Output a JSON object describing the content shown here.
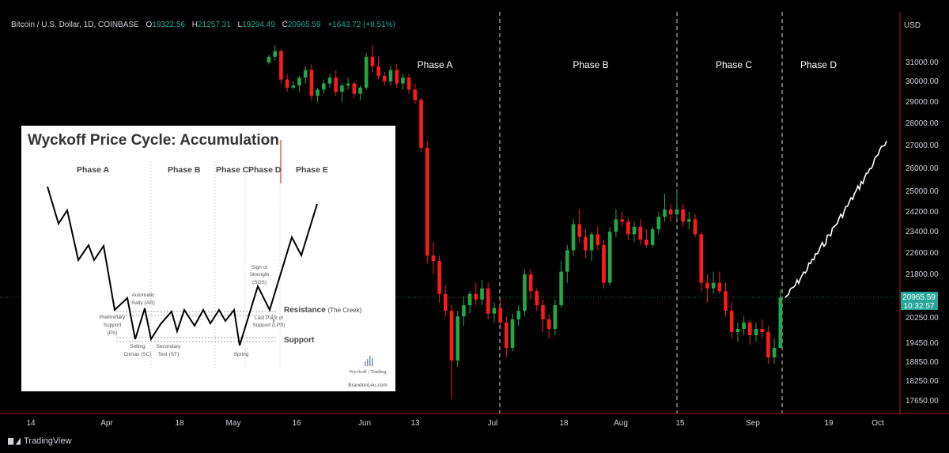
{
  "header": {
    "symbol": "Bitcoin / U.S. Dollar, 1D, COINBASE",
    "o_label": "O",
    "o": "19322.56",
    "h_label": "H",
    "h": "21257.31",
    "l_label": "L",
    "l": "19294.49",
    "c_label": "C",
    "c": "20965.59",
    "change": "+1643.72 (+8.51%)"
  },
  "currency": "USD",
  "footer": {
    "brand": "TradingView"
  },
  "colors": {
    "background": "#000000",
    "up": "#26a69a",
    "down": "#ff1a1a",
    "up_candle": "#20a945",
    "projection": "#ffffff",
    "axis_line": "#b71c1c"
  },
  "chart_data": [
    {
      "type": "candlestick",
      "title": "",
      "y_ticks": [
        31000,
        30000,
        29000,
        28000,
        27000,
        26000,
        25000,
        24200,
        23400,
        22600,
        21800,
        20250,
        19450,
        18850,
        18250,
        17650
      ],
      "y_tick_labels": [
        "31000.00",
        "30000.00",
        "29000.00",
        "28000.00",
        "27000.00",
        "26000.00",
        "25000.00",
        "24200.00",
        "23400.00",
        "22600.00",
        "21800.00",
        "20250.00",
        "19450.00",
        "18850.00",
        "18250.00",
        "17650.00"
      ],
      "x_tick_labels": [
        "14",
        "Apr",
        "18",
        "May",
        "16",
        "Jun",
        "13",
        "Jul",
        "18",
        "Aug",
        "15",
        "Sep",
        "19",
        "Oct"
      ],
      "last_price": "20965.59",
      "countdown": "10:32:57",
      "phase_labels": [
        "Phase A",
        "Phase B",
        "Phase C",
        "Phase D"
      ],
      "projection_end": 27200,
      "candles": [
        [
          31000,
          31400,
          30900,
          31300
        ],
        [
          31300,
          31900,
          31100,
          31600
        ],
        [
          31600,
          31700,
          29900,
          30100
        ],
        [
          30100,
          30400,
          29500,
          29700
        ],
        [
          29700,
          30000,
          29600,
          29800
        ],
        [
          29800,
          30300,
          29500,
          30200
        ],
        [
          30200,
          30800,
          29900,
          30600
        ],
        [
          30600,
          30900,
          29100,
          29300
        ],
        [
          29300,
          29700,
          29000,
          29600
        ],
        [
          29600,
          30100,
          29400,
          29900
        ],
        [
          29900,
          30400,
          29700,
          30200
        ],
        [
          30200,
          30600,
          29300,
          29500
        ],
        [
          29500,
          29900,
          29000,
          29800
        ],
        [
          29800,
          30200,
          29600,
          29900
        ],
        [
          29900,
          30000,
          29200,
          29400
        ],
        [
          29400,
          29800,
          29100,
          29700
        ],
        [
          29700,
          31500,
          29600,
          31300
        ],
        [
          31300,
          31900,
          30500,
          30800
        ],
        [
          30800,
          31300,
          30100,
          30300
        ],
        [
          30300,
          30500,
          29800,
          30000
        ],
        [
          30000,
          30800,
          29800,
          30600
        ],
        [
          30600,
          30900,
          29700,
          29900
        ],
        [
          29900,
          30400,
          29600,
          30200
        ],
        [
          30200,
          30400,
          29400,
          29600
        ],
        [
          29600,
          29900,
          28900,
          29100
        ],
        [
          29100,
          29200,
          26700,
          26900
        ],
        [
          26900,
          27200,
          22200,
          22500
        ],
        [
          22500,
          23000,
          21800,
          22300
        ],
        [
          22300,
          22500,
          20800,
          21100
        ],
        [
          21100,
          21400,
          20300,
          20500
        ],
        [
          20500,
          20700,
          17700,
          18900
        ],
        [
          18900,
          20500,
          18700,
          20300
        ],
        [
          20300,
          21000,
          20000,
          20700
        ],
        [
          20700,
          21200,
          20400,
          21100
        ],
        [
          21100,
          21500,
          20700,
          20900
        ],
        [
          20900,
          21600,
          20700,
          21300
        ],
        [
          21300,
          21500,
          20200,
          20400
        ],
        [
          20400,
          20800,
          20100,
          20600
        ],
        [
          20600,
          20900,
          19900,
          20100
        ],
        [
          20100,
          20300,
          19000,
          19300
        ],
        [
          19300,
          20400,
          19200,
          20200
        ],
        [
          20200,
          20700,
          20000,
          20500
        ],
        [
          20500,
          22000,
          20300,
          21800
        ],
        [
          21800,
          22000,
          20900,
          21200
        ],
        [
          21200,
          21300,
          20500,
          20700
        ],
        [
          20700,
          20900,
          19800,
          20200
        ],
        [
          20200,
          20400,
          19600,
          19900
        ],
        [
          19900,
          20900,
          19700,
          20700
        ],
        [
          20700,
          22300,
          20600,
          21900
        ],
        [
          21900,
          22900,
          21500,
          22700
        ],
        [
          22700,
          23900,
          22500,
          23700
        ],
        [
          23700,
          24300,
          23000,
          23200
        ],
        [
          23200,
          23500,
          22400,
          22700
        ],
        [
          22700,
          23400,
          22300,
          23300
        ],
        [
          23300,
          23600,
          22700,
          22900
        ],
        [
          22900,
          23100,
          21300,
          21500
        ],
        [
          21500,
          23600,
          21400,
          23400
        ],
        [
          23400,
          24300,
          23200,
          23900
        ],
        [
          23900,
          24200,
          23600,
          23800
        ],
        [
          23800,
          24000,
          23100,
          23300
        ],
        [
          23300,
          23800,
          23000,
          23600
        ],
        [
          23600,
          23900,
          22900,
          23100
        ],
        [
          23100,
          23500,
          22800,
          22900
        ],
        [
          22900,
          23600,
          22800,
          23500
        ],
        [
          23500,
          24200,
          23300,
          24000
        ],
        [
          24000,
          24900,
          23800,
          24300
        ],
        [
          24300,
          24500,
          23800,
          24100
        ],
        [
          24100,
          25100,
          23900,
          24300
        ],
        [
          24300,
          24500,
          23600,
          23800
        ],
        [
          23800,
          24200,
          23500,
          23900
        ],
        [
          23900,
          24100,
          23200,
          23300
        ],
        [
          23300,
          23400,
          21200,
          21500
        ],
        [
          21500,
          21800,
          20800,
          21300
        ],
        [
          21300,
          21900,
          21100,
          21500
        ],
        [
          21500,
          21900,
          21100,
          21200
        ],
        [
          21200,
          21500,
          20300,
          20500
        ],
        [
          20500,
          20800,
          19600,
          19800
        ],
        [
          19800,
          20100,
          19500,
          19900
        ],
        [
          19900,
          20300,
          19700,
          20100
        ],
        [
          20100,
          20200,
          19400,
          19700
        ],
        [
          19700,
          20100,
          19500,
          19900
        ],
        [
          19900,
          20200,
          19600,
          19800
        ],
        [
          19800,
          20000,
          18800,
          19000
        ],
        [
          19000,
          19600,
          18800,
          19300
        ],
        [
          19300,
          21257,
          19294,
          20966
        ]
      ]
    },
    {
      "type": "diagram",
      "title": "Wyckoff Price Cycle: Accumulation",
      "phases": [
        "Phase A",
        "Phase B",
        "Phase C",
        "Phase D",
        "Phase E"
      ],
      "annotations": {
        "ar": [
          "Automatic",
          "Rally (AR)"
        ],
        "ps": [
          "Preliminary",
          "Support",
          "(PS)"
        ],
        "sc": [
          "Selling",
          "Climax (SC)"
        ],
        "st": [
          "Secondary",
          "Test (ST)"
        ],
        "spring": "Spring",
        "sos": [
          "Sign of",
          "Strength",
          "(SOS)"
        ],
        "lps": [
          "Last Point of",
          "Support (LPS)"
        ],
        "resistance": "Resistance",
        "creek": "(The Creek)",
        "support": "Support"
      },
      "logo": "Wyckoff | Trading",
      "site": "BrandonLeu.com"
    }
  ]
}
